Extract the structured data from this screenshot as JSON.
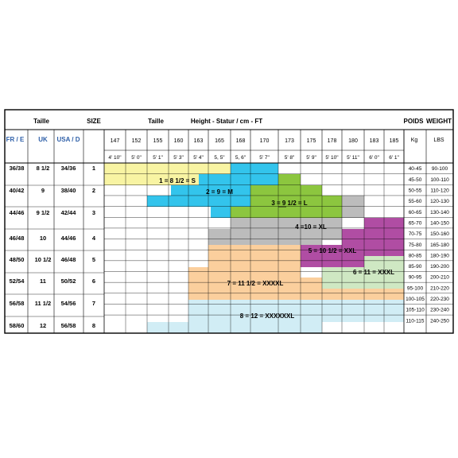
{
  "header": {
    "taille_left": "Taille",
    "size": "SIZE",
    "taille_mid": "Taille",
    "height_title": "Height - Statur / cm  - FT",
    "poids": "POIDS",
    "weight": "WEIGHT",
    "fr_e": "FR / E",
    "uk": "UK",
    "usa_d": "USA /  D",
    "kg": "Kg",
    "lbs": "LBS"
  },
  "heights_cm": [
    "147",
    "152",
    "155",
    "160",
    "163",
    "165",
    "168",
    "170",
    "173",
    "175",
    "178",
    "180",
    "183",
    "185"
  ],
  "heights_ft": [
    "4' 10\"",
    "5' 0\"",
    "5' 1\"",
    "5' 3\"",
    "5' 4\"",
    "5, 5\"",
    "5, 6\"",
    "5' 7\"",
    "5' 8\"",
    "5' 9\"",
    "5' 10\"",
    "5' 11\"",
    "6' 0\"",
    "6' 1\""
  ],
  "size_rows": [
    {
      "fr": "36/38",
      "uk": "8 1/2",
      "usa": "34/36",
      "size": "1"
    },
    {
      "fr": "40/42",
      "uk": "9",
      "usa": "38/40",
      "size": "2"
    },
    {
      "fr": "44/46",
      "uk": "9 1/2",
      "usa": "42/44",
      "size": "3"
    },
    {
      "fr": "46/48",
      "uk": "10",
      "usa": "44/46",
      "size": "4"
    },
    {
      "fr": "48/50",
      "uk": "10 1/2",
      "usa": "46/48",
      "size": "5"
    },
    {
      "fr": "52/54",
      "uk": "11",
      "usa": "50/52",
      "size": "6"
    },
    {
      "fr": "56/58",
      "uk": "11 1/2",
      "usa": "54/56",
      "size": "7"
    },
    {
      "fr": "58/60",
      "uk": "12",
      "usa": "56/58",
      "size": "8"
    }
  ],
  "weights": [
    {
      "kg": "40-45",
      "lbs": "90-100"
    },
    {
      "kg": "45-50",
      "lbs": "100-110"
    },
    {
      "kg": "50-55",
      "lbs": "110-120"
    },
    {
      "kg": "55-60",
      "lbs": "120-130"
    },
    {
      "kg": "60-65",
      "lbs": "130-140"
    },
    {
      "kg": "65-70",
      "lbs": "140-150"
    },
    {
      "kg": "70-75",
      "lbs": "150-160"
    },
    {
      "kg": "75-80",
      "lbs": "165-180"
    },
    {
      "kg": "80-85",
      "lbs": "180-190"
    },
    {
      "kg": "85-90",
      "lbs": "190-200"
    },
    {
      "kg": "90-95",
      "lbs": "200-210"
    },
    {
      "kg": "95-100",
      "lbs": "210-220"
    },
    {
      "kg": "100-105",
      "lbs": "220-230"
    },
    {
      "kg": "105-110",
      "lbs": "230-240"
    },
    {
      "kg": "110-115",
      "lbs": "240-250"
    }
  ],
  "size_zones": [
    {
      "label": "1 = 8 1/2 = S",
      "color": "#f8f4a3"
    },
    {
      "label": "2 = 9 = M",
      "color": "#33c4ec"
    },
    {
      "label": "3 = 9 1/2 = L",
      "color": "#8cc63f"
    },
    {
      "label": "4 =10 = XL",
      "color": "#bcbcbc"
    },
    {
      "label": "5 = 10 1/2 = XXL",
      "color": "#b04da3"
    },
    {
      "label": "6 = 11 = XXXL",
      "color": "#cfe8c3"
    },
    {
      "label": "7 = 11 1/2 = XXXXL",
      "color": "#fbcf9d"
    },
    {
      "label": "8 = 12 = XXXXXXL",
      "color": "#d1edf5"
    }
  ],
  "colors": {
    "border": "#000000",
    "header_blue": "#2e5fa8"
  }
}
